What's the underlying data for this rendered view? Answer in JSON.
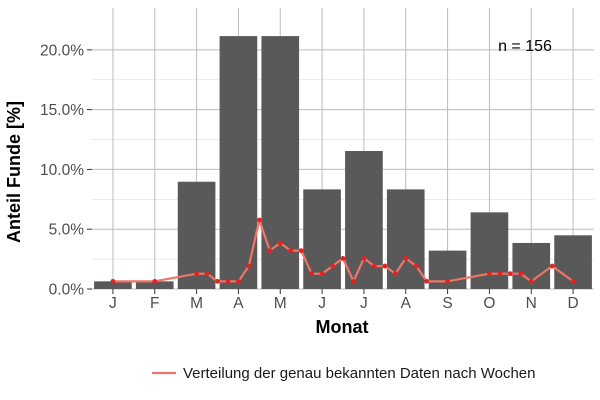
{
  "chart_data": {
    "type": "bar",
    "categories": [
      "J",
      "F",
      "M",
      "A",
      "M",
      "J",
      "J",
      "A",
      "S",
      "O",
      "N",
      "D"
    ],
    "values": [
      0.64,
      0.64,
      8.97,
      21.15,
      21.15,
      8.33,
      11.54,
      8.33,
      3.21,
      6.41,
      3.85,
      4.49
    ],
    "bar_color": "#595959",
    "xlabel": "Monat",
    "ylabel": "Anteil Funde [%]",
    "ylim": [
      0,
      23.5
    ],
    "yticks": [
      0,
      5,
      10,
      15,
      20
    ],
    "ytick_labels": [
      "0.0%",
      "5.0%",
      "10.0%",
      "15.0%",
      "20.0%"
    ],
    "grid": true,
    "annotation": "n = 156",
    "series": [
      {
        "name": "Verteilung der genau bekannten Daten nach Wochen",
        "type": "line",
        "color": "#f07468",
        "marker_color": "#e4231f",
        "x": [
          1,
          2,
          3,
          3.25,
          3.5,
          3.75,
          4,
          4.25,
          4.5,
          4.75,
          5,
          5.25,
          5.5,
          5.75,
          6,
          6.25,
          6.5,
          6.75,
          7,
          7.25,
          7.5,
          7.75,
          8,
          8.25,
          8.5,
          9,
          10,
          10.25,
          10.5,
          10.75,
          11,
          11.5,
          12
        ],
        "values": [
          0.64,
          0.64,
          1.28,
          1.28,
          0.64,
          0.64,
          0.64,
          1.92,
          5.77,
          3.21,
          3.85,
          3.21,
          3.21,
          1.28,
          1.28,
          1.92,
          2.56,
          0.64,
          2.56,
          1.92,
          1.92,
          1.28,
          2.56,
          1.92,
          0.64,
          0.64,
          1.28,
          1.28,
          1.28,
          1.28,
          0.64,
          1.92,
          0.64
        ]
      }
    ],
    "legend_position": "bottom"
  }
}
